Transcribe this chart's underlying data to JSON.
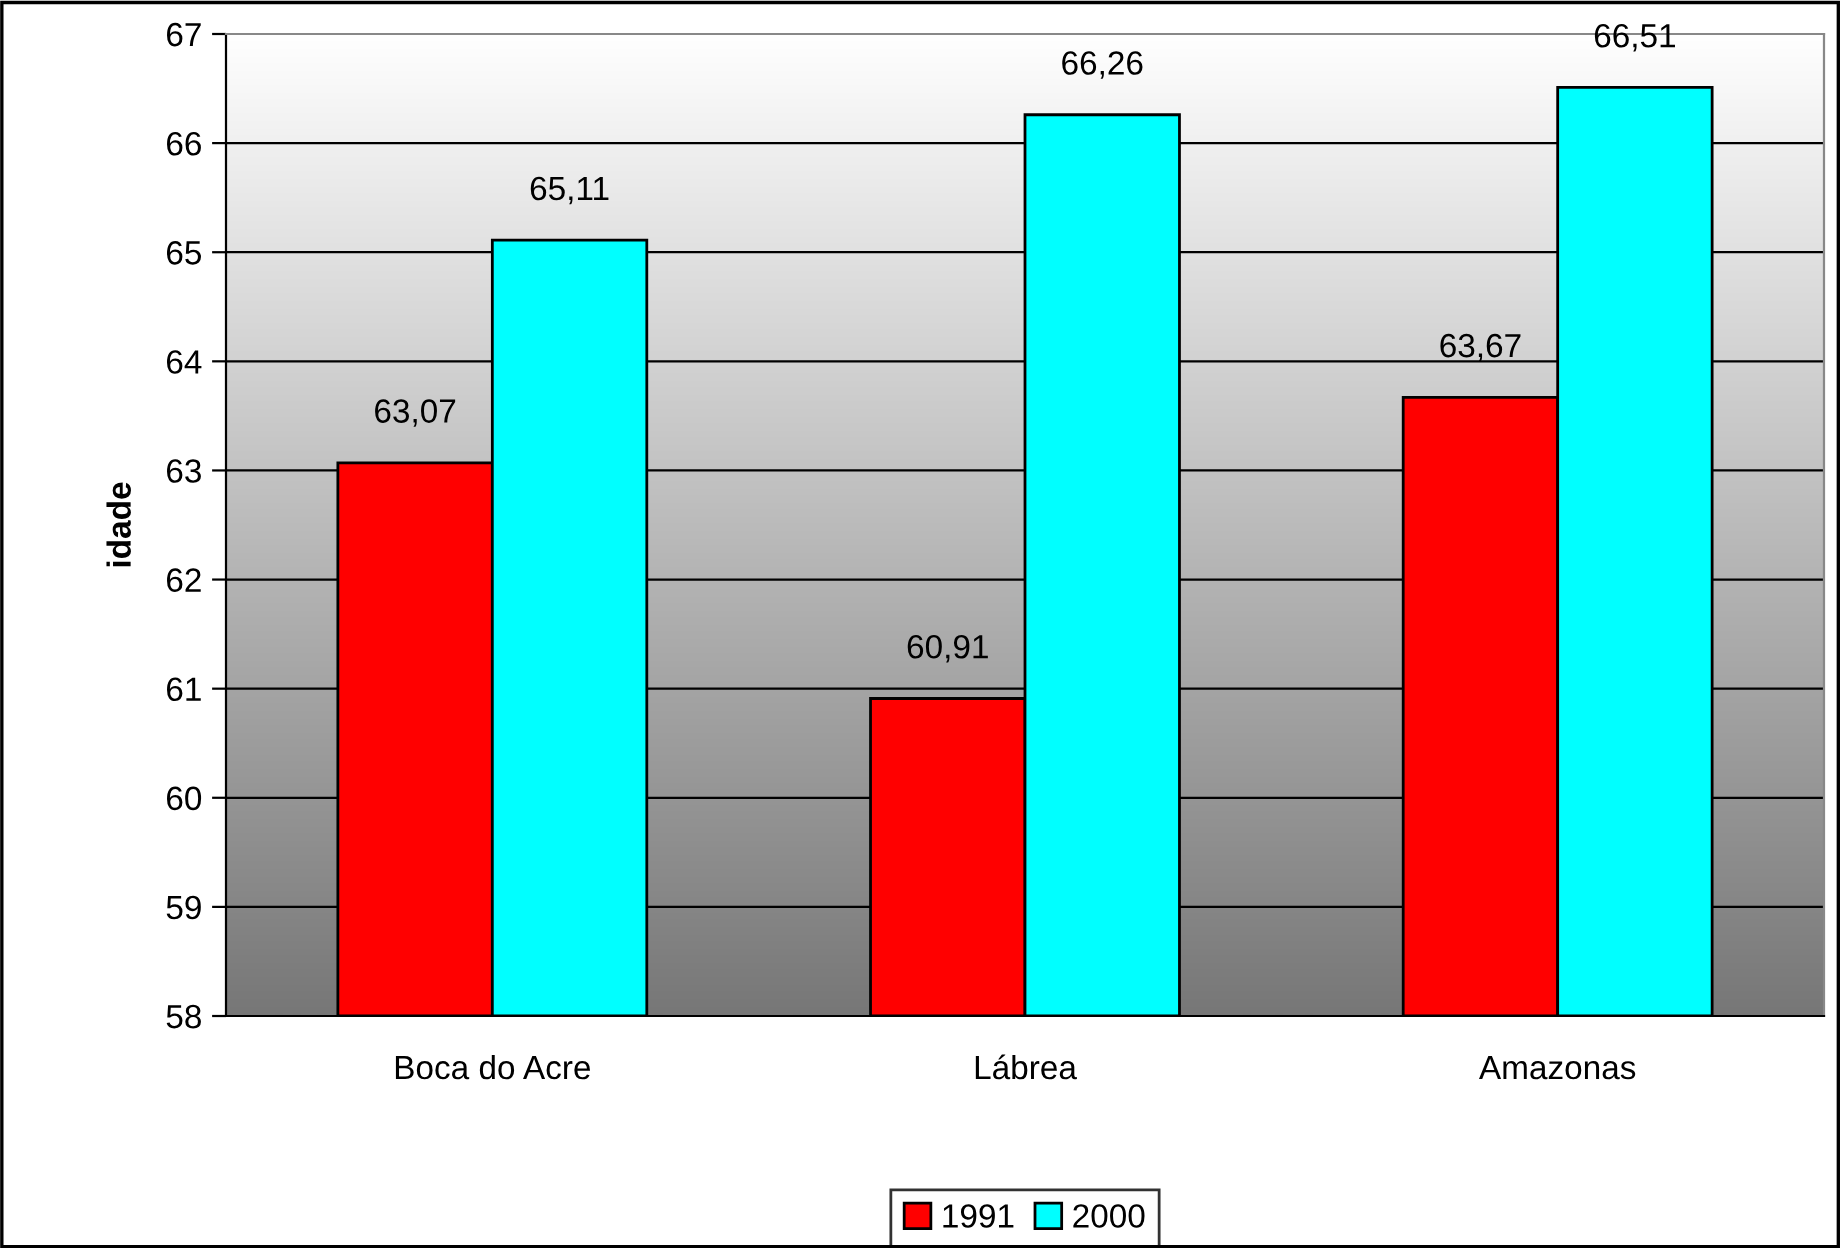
{
  "chart_data": {
    "type": "bar",
    "ylabel": "idade",
    "categories": [
      "Boca do Acre",
      "Lábrea",
      "Amazonas"
    ],
    "series": [
      {
        "name": "1991",
        "color": "#ff0000",
        "values": [
          63.07,
          60.91,
          63.67
        ],
        "value_labels": [
          "63,07",
          "60,91",
          "63,67"
        ]
      },
      {
        "name": "2000",
        "color": "#00ffff",
        "values": [
          65.11,
          66.26,
          66.51
        ],
        "value_labels": [
          "65,11",
          "66,26",
          "66,51"
        ]
      }
    ],
    "ylim": [
      58,
      67
    ],
    "yticks": [
      58,
      59,
      60,
      61,
      62,
      63,
      64,
      65,
      66,
      67
    ],
    "grid": "y",
    "legend": "bottom"
  }
}
